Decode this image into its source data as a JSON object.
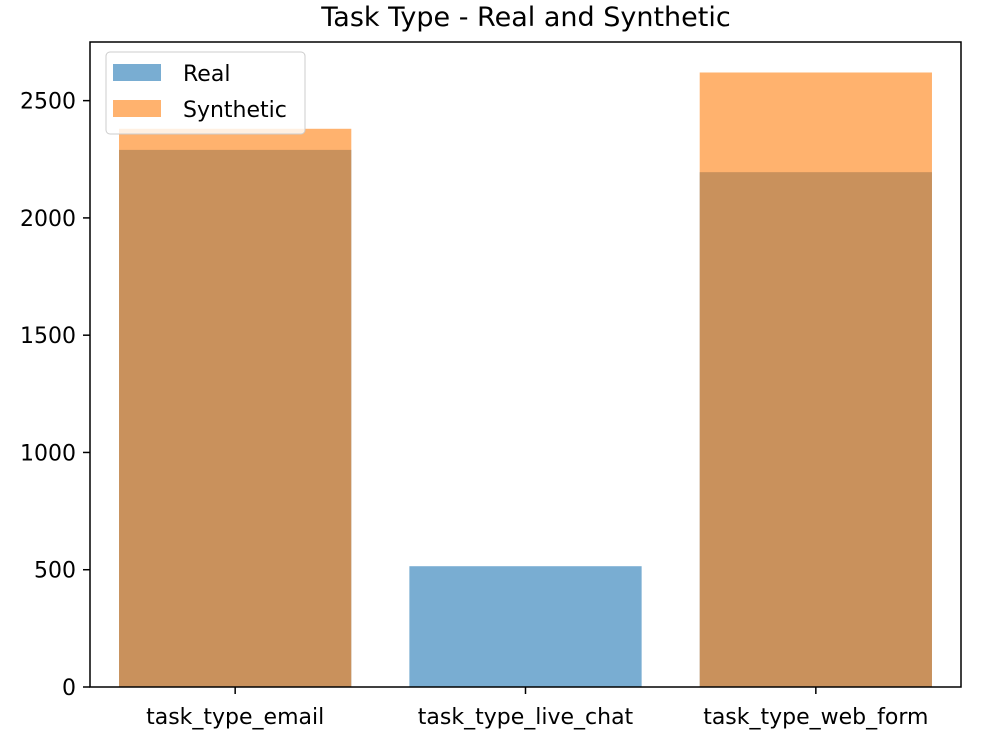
{
  "chart_data": {
    "type": "bar",
    "title": "Task Type - Real and Synthetic",
    "xlabel": "",
    "ylabel": "",
    "categories": [
      "task_type_email",
      "task_type_live_chat",
      "task_type_web_form"
    ],
    "series": [
      {
        "name": "Real",
        "values": [
          2290,
          515,
          2195
        ],
        "color": "#1f77b4",
        "opacity": 0.6
      },
      {
        "name": "Synthetic",
        "values": [
          2380,
          0,
          2620
        ],
        "color": "#ff7f0e",
        "opacity": 0.6
      }
    ],
    "ylim": [
      0,
      2750
    ],
    "yticks": [
      0,
      500,
      1000,
      1500,
      2000,
      2500
    ],
    "grid": false,
    "legend": "top-left",
    "bar_style": "overlaid"
  }
}
